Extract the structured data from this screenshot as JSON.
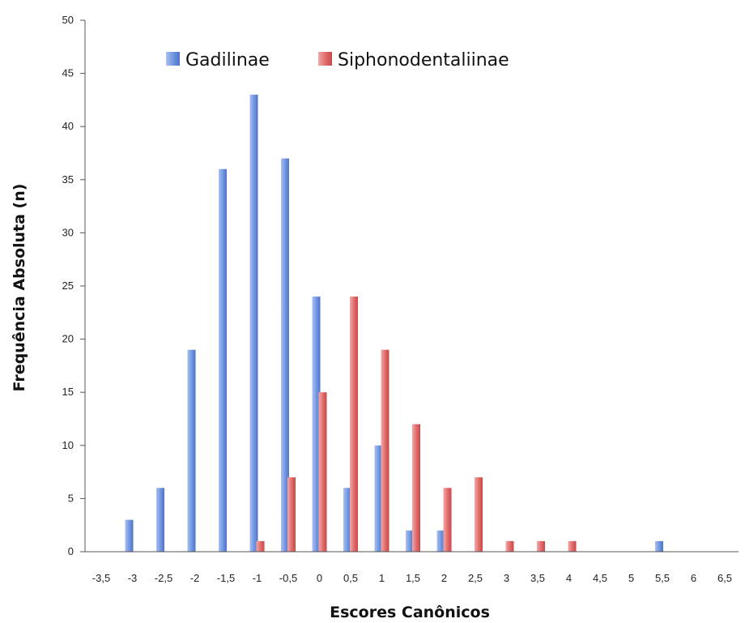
{
  "chart_data": {
    "type": "bar",
    "xlabel": "Escores Canônicos",
    "ylabel": "Frequência  Absoluta (n)",
    "ylim": [
      0,
      50
    ],
    "yticks": [
      "0",
      "5",
      "10",
      "15",
      "20",
      "25",
      "30",
      "35",
      "40",
      "45",
      "50"
    ],
    "categories": [
      "-3,5",
      "-3",
      "-2,5",
      "-2",
      "-1,5",
      "-1",
      "-0,5",
      "0",
      "0,5",
      "1",
      "1,5",
      "2",
      "2,5",
      "3",
      "3,5",
      "4",
      "4,5",
      "5",
      "5,5",
      "6",
      "6,5"
    ],
    "legend_position": "top-left",
    "grid": false,
    "series": [
      {
        "name": "Gadilinae",
        "color": "#6a8fdc",
        "values": [
          0,
          3,
          6,
          19,
          36,
          43,
          37,
          24,
          6,
          10,
          2,
          2,
          0,
          0,
          0,
          0,
          0,
          0,
          1,
          0,
          0
        ]
      },
      {
        "name": "Siphonodentaliinae",
        "color": "#e06060",
        "values": [
          0,
          0,
          0,
          0,
          0,
          1,
          7,
          15,
          24,
          19,
          12,
          6,
          7,
          1,
          1,
          1,
          0,
          0,
          0,
          0,
          0
        ]
      }
    ]
  }
}
